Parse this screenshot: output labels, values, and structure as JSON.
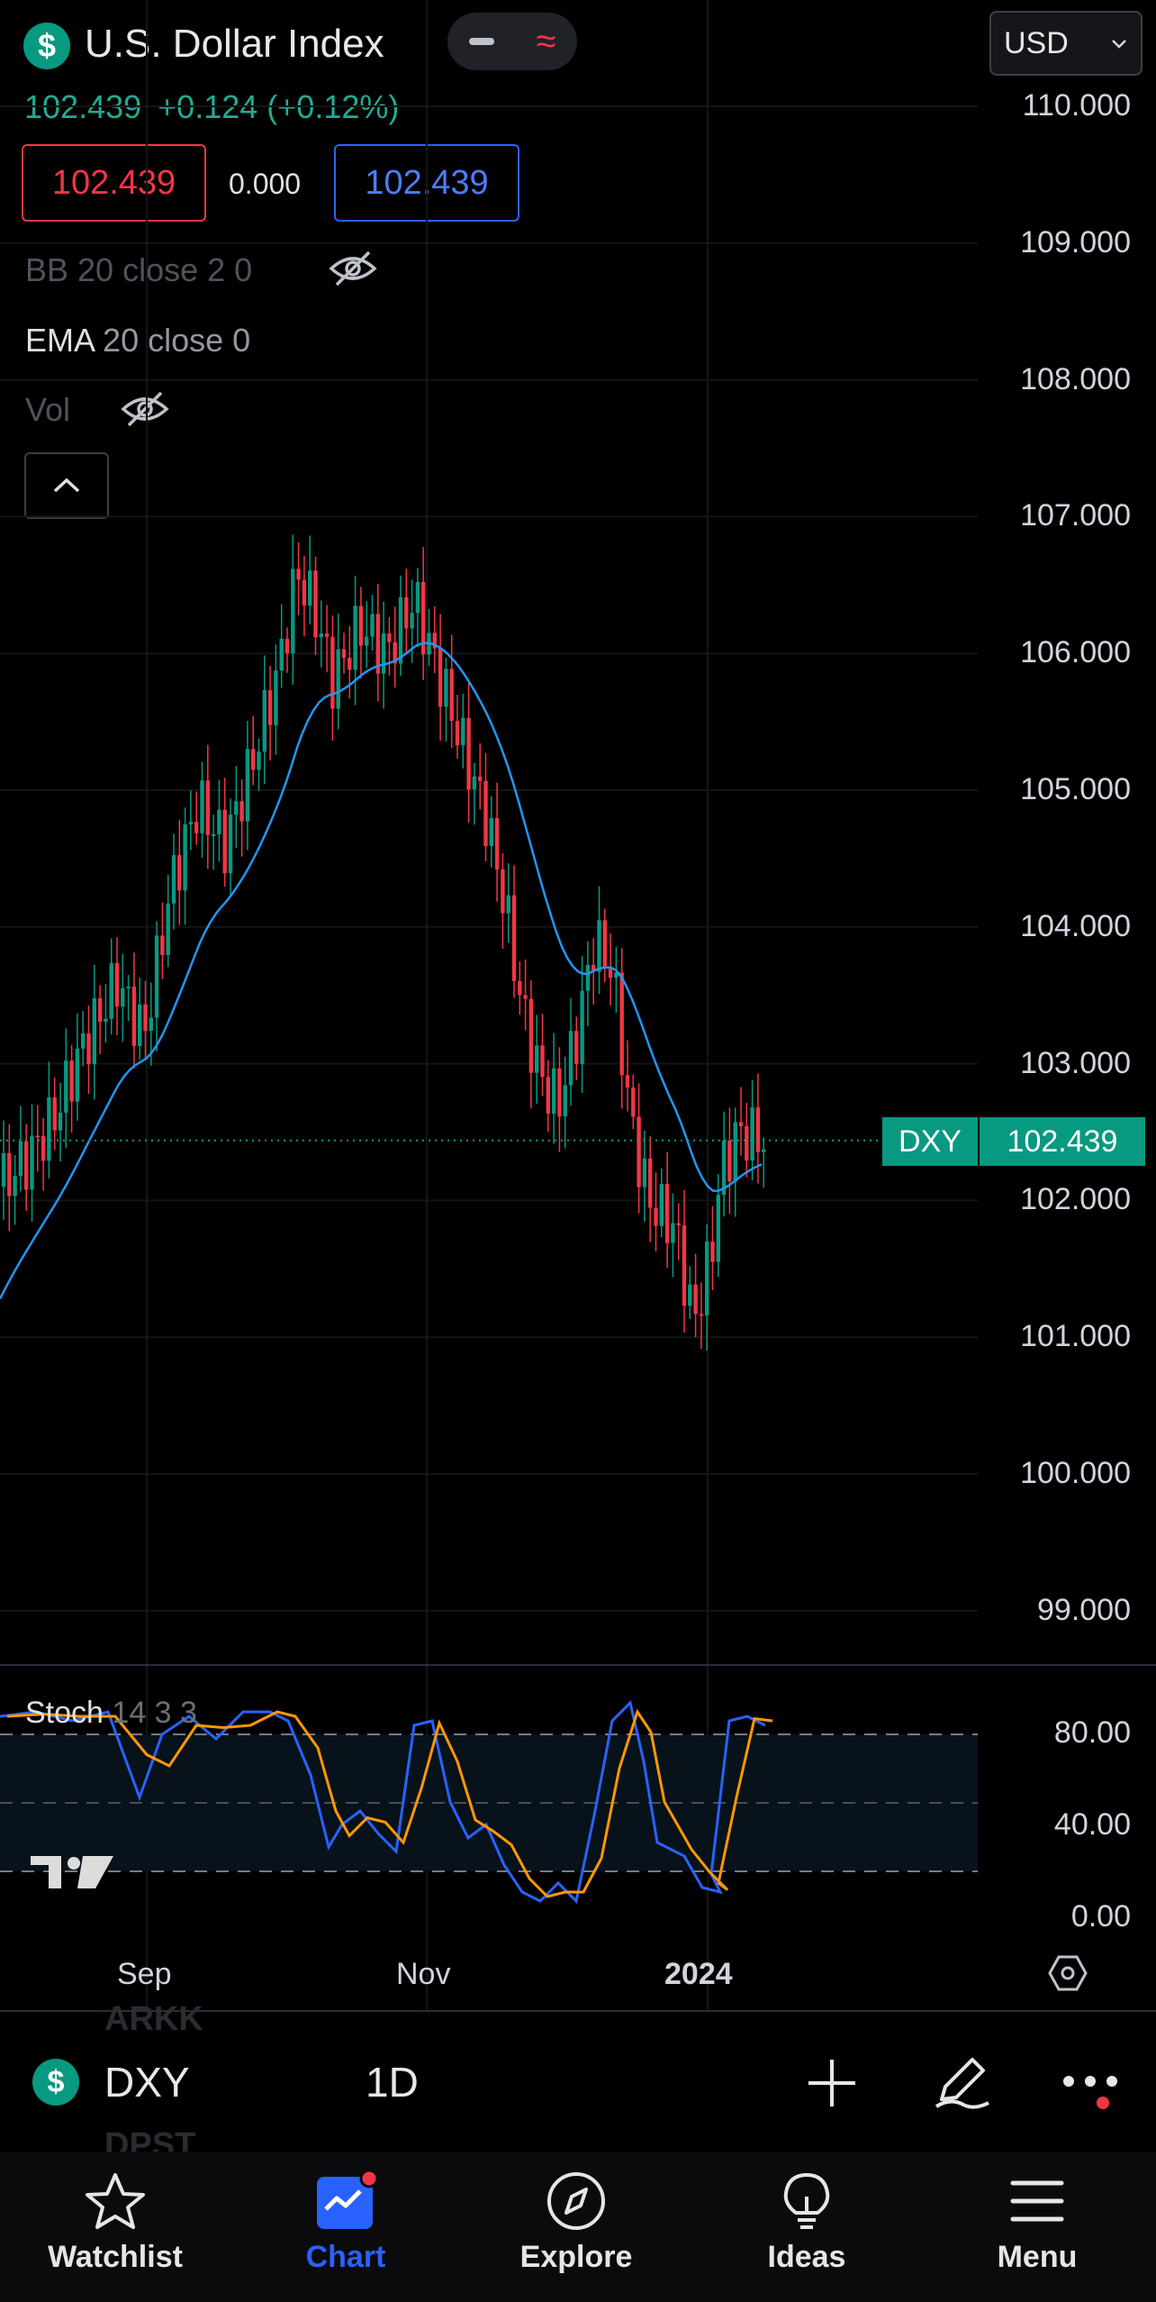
{
  "header": {
    "symbol_badge": "$",
    "title": "U.S. Dollar Index",
    "currency": "USD",
    "price": "102.439",
    "change": "+0.124",
    "change_pct": "(+0.12%)",
    "sell_price": "102.439",
    "spread": "0.000",
    "buy_price": "102.439"
  },
  "indicators": {
    "bb": "BB 20 close 2 0",
    "ema_name": "EMA",
    "ema_params": "20 close 0",
    "vol": "Vol"
  },
  "chart_data": {
    "type": "candlestick",
    "symbol": "DXY",
    "interval": "1D",
    "last_price_label": "102.439",
    "last_price": 102.439,
    "ylim": [
      98.6,
      110.4
    ],
    "y_ticks": [
      "110.000",
      "109.000",
      "108.000",
      "107.000",
      "106.000",
      "105.000",
      "104.000",
      "103.000",
      "102.000",
      "101.000",
      "100.000",
      "99.000"
    ],
    "x_ticks": [
      "Sep",
      "Nov",
      "2024"
    ],
    "series": [
      {
        "name": "EMA",
        "color": "#2196f3"
      }
    ],
    "stochastic": {
      "label": "Stoch",
      "params": "14 3 3",
      "levels": [
        80,
        20
      ],
      "y_ticks": [
        "80.00",
        "40.00",
        "0.00"
      ]
    },
    "colors": {
      "up": "#089981",
      "down": "#f23645",
      "k": "#2962ff",
      "d": "#ff9800"
    }
  },
  "toolbar": {
    "symbol_badge": "$",
    "symbol": "DXY",
    "interval": "1D",
    "ghost_above": "ARKK",
    "ghost_below": "DPST"
  },
  "nav": {
    "items": [
      {
        "label": "Watchlist"
      },
      {
        "label": "Chart"
      },
      {
        "label": "Explore"
      },
      {
        "label": "Ideas"
      },
      {
        "label": "Menu"
      }
    ],
    "active_index": 1
  }
}
